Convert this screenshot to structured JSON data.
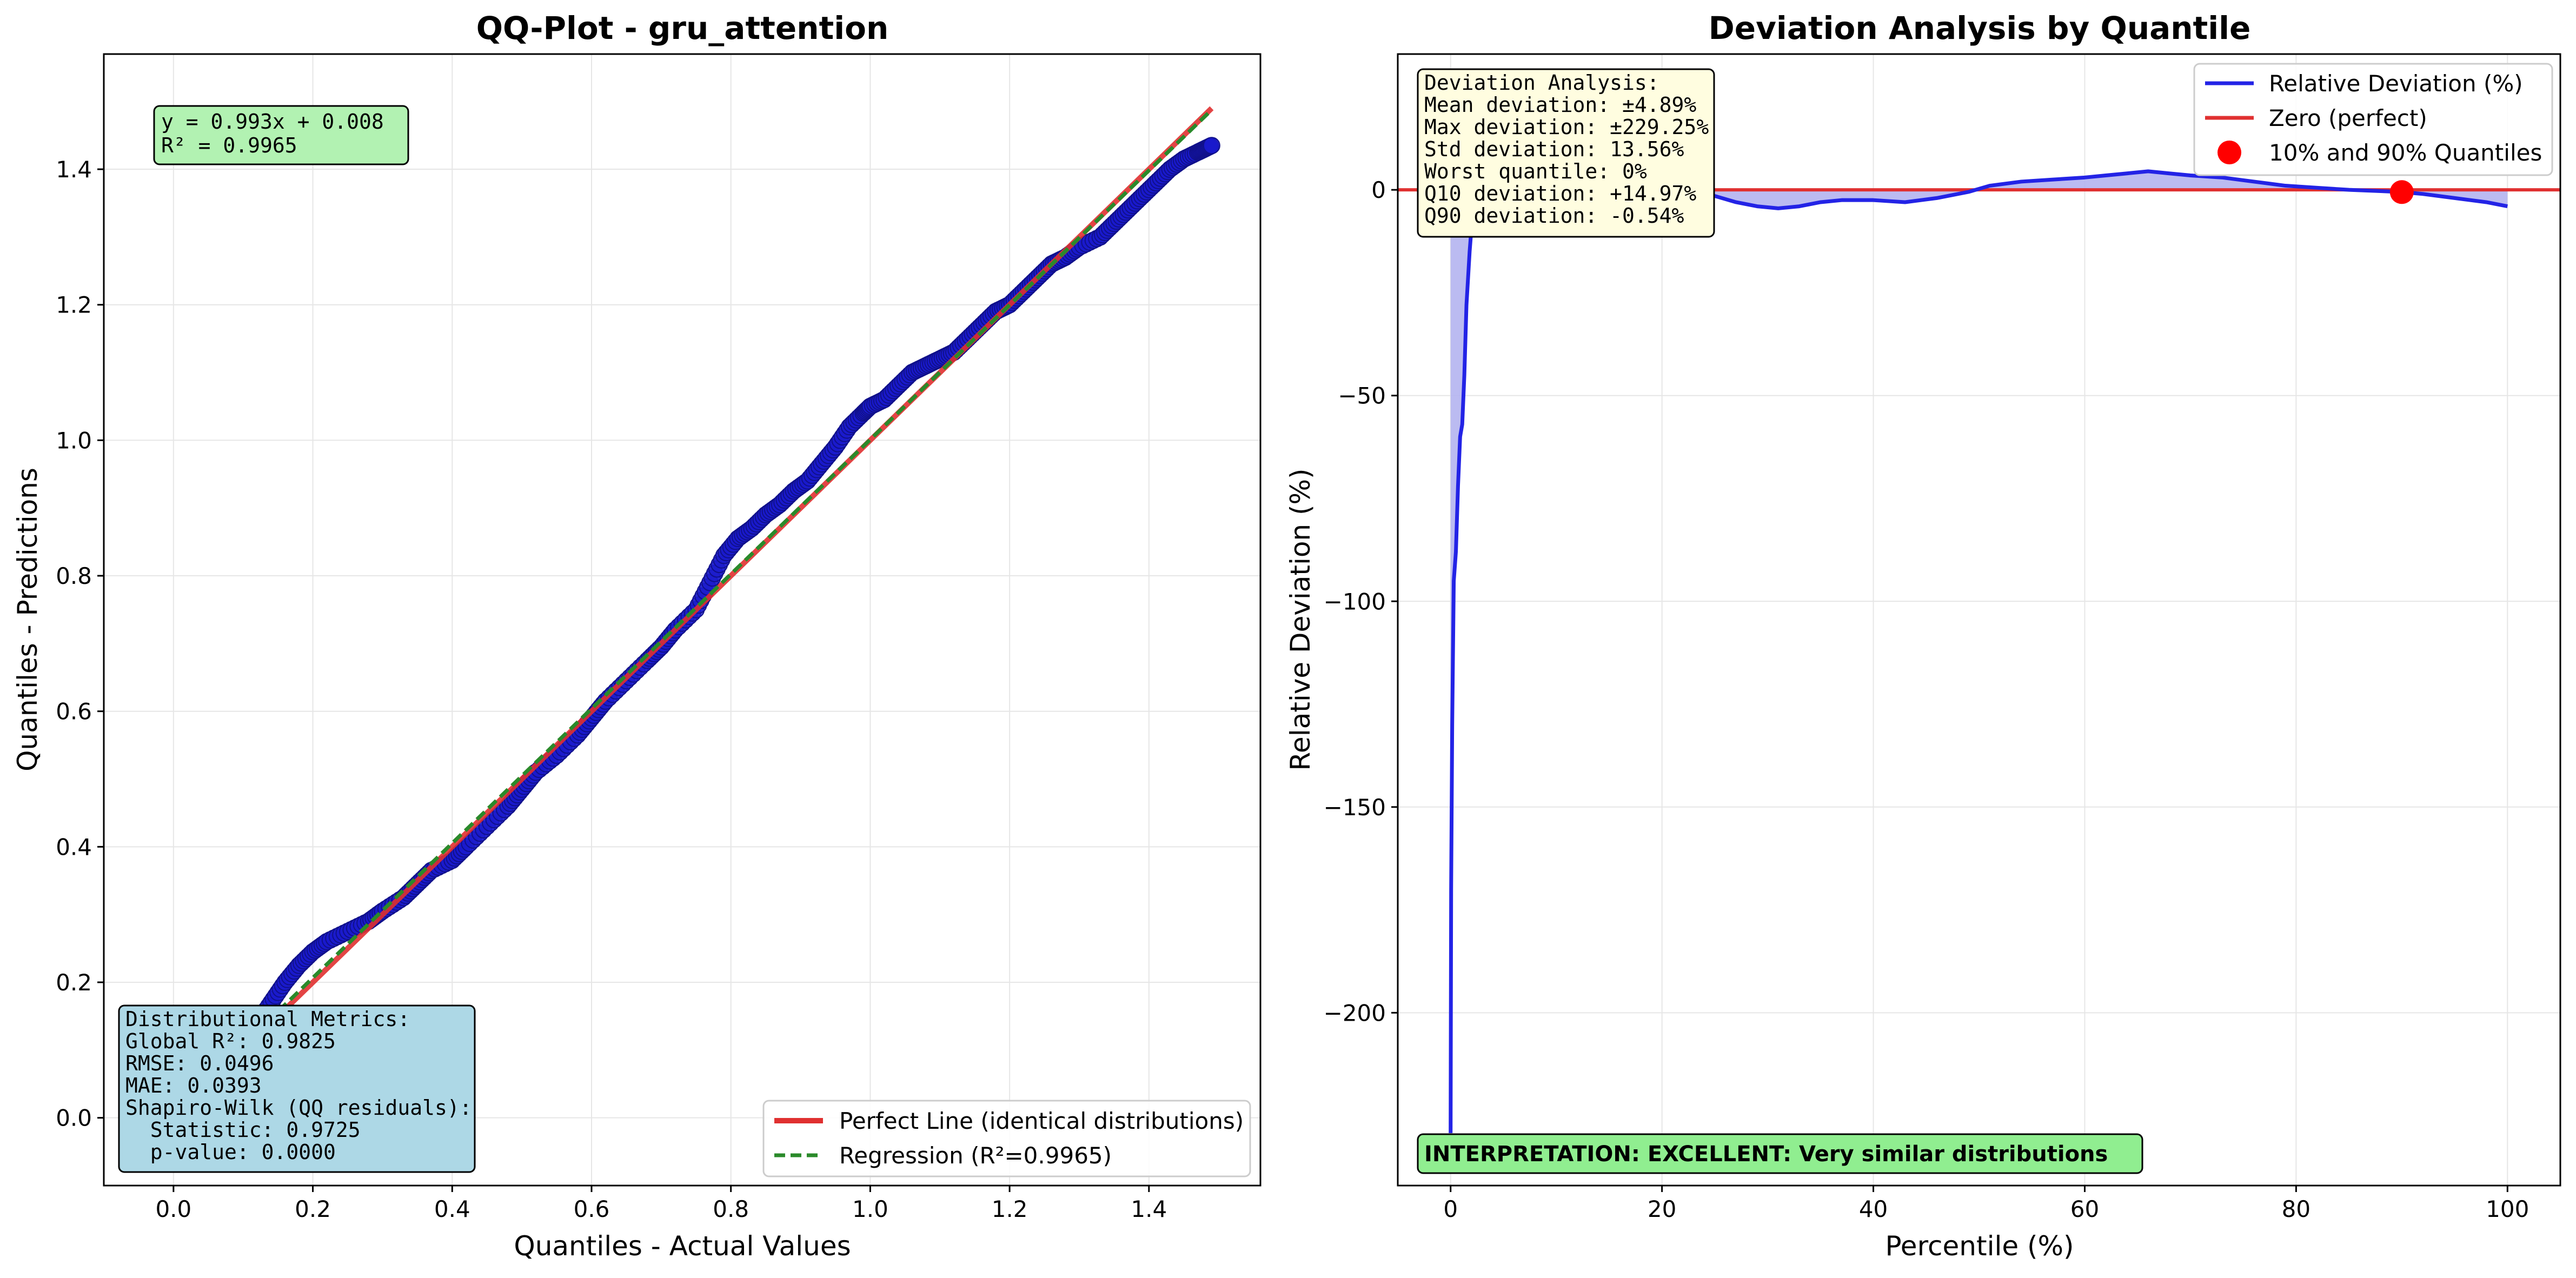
{
  "chart_data": [
    {
      "type": "scatter",
      "title": "QQ-Plot - gru_attention",
      "xlabel": "Quantiles - Actual Values",
      "ylabel": "Quantiles - Predictions",
      "xlim": [
        -0.1,
        1.56
      ],
      "ylim": [
        -0.1,
        1.57
      ],
      "xticks": [
        "0.0",
        "0.2",
        "0.4",
        "0.6",
        "0.8",
        "1.0",
        "1.2",
        "1.4"
      ],
      "yticks": [
        "0.0",
        "0.2",
        "0.4",
        "0.6",
        "0.8",
        "1.0",
        "1.2",
        "1.4"
      ],
      "grid": true,
      "legend_position": "bottom-right",
      "series": [
        {
          "kind": "points",
          "color": "#1a1acc",
          "x": [
            0.0,
            0.05,
            0.1,
            0.12,
            0.14,
            0.16,
            0.18,
            0.2,
            0.22,
            0.25,
            0.28,
            0.3,
            0.33,
            0.35,
            0.37,
            0.4,
            0.42,
            0.45,
            0.48,
            0.5,
            0.52,
            0.55,
            0.58,
            0.6,
            0.62,
            0.65,
            0.68,
            0.7,
            0.72,
            0.75,
            0.77,
            0.79,
            0.81,
            0.83,
            0.85,
            0.87,
            0.89,
            0.91,
            0.93,
            0.95,
            0.97,
            0.99,
            1.0,
            1.02,
            1.04,
            1.06,
            1.08,
            1.1,
            1.12,
            1.14,
            1.16,
            1.18,
            1.2,
            1.22,
            1.24,
            1.26,
            1.28,
            1.3,
            1.33,
            1.35,
            1.37,
            1.39,
            1.41,
            1.43,
            1.45,
            1.47,
            1.48,
            1.49
          ],
          "y": [
            -0.01,
            0.05,
            0.1,
            0.14,
            0.17,
            0.2,
            0.225,
            0.245,
            0.26,
            0.275,
            0.29,
            0.305,
            0.325,
            0.345,
            0.365,
            0.38,
            0.4,
            0.43,
            0.46,
            0.485,
            0.51,
            0.535,
            0.565,
            0.59,
            0.615,
            0.645,
            0.675,
            0.695,
            0.72,
            0.75,
            0.79,
            0.83,
            0.855,
            0.87,
            0.89,
            0.905,
            0.925,
            0.94,
            0.965,
            0.99,
            1.02,
            1.04,
            1.05,
            1.06,
            1.08,
            1.1,
            1.11,
            1.12,
            1.13,
            1.15,
            1.17,
            1.19,
            1.2,
            1.22,
            1.24,
            1.26,
            1.27,
            1.285,
            1.3,
            1.32,
            1.34,
            1.36,
            1.38,
            1.4,
            1.415,
            1.425,
            1.43,
            1.435
          ]
        },
        {
          "kind": "line",
          "name": "Perfect Line (identical distributions)",
          "color": "#e03030",
          "style": "solid",
          "x": [
            0.0,
            1.49
          ],
          "y": [
            0.0,
            1.49
          ]
        },
        {
          "kind": "line",
          "name": "Regression (R²=0.9965)",
          "color": "#2a8a2a",
          "style": "dashed",
          "x": [
            0.0,
            1.49
          ],
          "y": [
            0.008,
            1.4876
          ]
        }
      ],
      "annotations": {
        "equation": [
          "y = 0.993x + 0.008",
          "R² = 0.9965"
        ],
        "metrics": [
          "Distributional Metrics:",
          "Global R²: 0.9825",
          "RMSE: 0.0496",
          "MAE: 0.0393",
          "Shapiro-Wilk (QQ residuals):",
          "  Statistic: 0.9725",
          "  p-value: 0.0000"
        ]
      }
    },
    {
      "type": "line",
      "title": "Deviation Analysis by Quantile",
      "xlabel": "Percentile (%)",
      "ylabel": "Relative Deviation (%)",
      "xlim": [
        -5,
        105
      ],
      "ylim": [
        -242,
        33
      ],
      "xticks": [
        "0",
        "20",
        "40",
        "60",
        "80",
        "100"
      ],
      "yticks": [
        "−200",
        "−150",
        "−100",
        "−50",
        "0"
      ],
      "grid": true,
      "legend_position": "top-right",
      "series": [
        {
          "kind": "line",
          "name": "Relative Deviation (%)",
          "color": "#2323e6",
          "fill": "#b4b4f0",
          "x": [
            0.0,
            0.05,
            0.15,
            0.3,
            0.5,
            0.7,
            0.9,
            1.1,
            1.3,
            1.5,
            1.8,
            2.1,
            2.5,
            3.0,
            3.6,
            4.2,
            5.0,
            6.0,
            7.0,
            8.0,
            9.0,
            10.0,
            11.5,
            13.0,
            15.0,
            17.0,
            19.0,
            21.0,
            23.0,
            25.0,
            27.0,
            29.0,
            31.0,
            33.0,
            35.0,
            37.0,
            40.0,
            43.0,
            46.0,
            49.0,
            51.0,
            54.0,
            57.0,
            60.0,
            62.0,
            64.0,
            66.0,
            68.0,
            70.0,
            73.0,
            76.0,
            79.0,
            82.0,
            85.0,
            88.0,
            90.0,
            92.0,
            95.0,
            98.0,
            100.0
          ],
          "y": [
            -229.25,
            -170.0,
            -130.0,
            -95.0,
            -88.0,
            -72.0,
            -60.0,
            -57.0,
            -45.0,
            -28.0,
            -15.0,
            -5.0,
            3.0,
            8.0,
            12.0,
            16.0,
            19.0,
            22.0,
            21.0,
            18.0,
            16.0,
            14.97,
            12.0,
            10.0,
            8.0,
            6.0,
            4.0,
            2.0,
            0.0,
            -1.5,
            -3.0,
            -4.0,
            -4.5,
            -4.0,
            -3.0,
            -2.5,
            -2.5,
            -3.0,
            -2.0,
            -0.5,
            1.0,
            2.0,
            2.5,
            3.0,
            3.5,
            4.0,
            4.5,
            4.0,
            3.5,
            3.0,
            2.0,
            1.0,
            0.5,
            0.0,
            -0.3,
            -0.54,
            -1.0,
            -2.0,
            -3.0,
            -4.0
          ]
        },
        {
          "kind": "line",
          "name": "Zero (perfect)",
          "color": "#e03030",
          "x": [
            -5,
            105
          ],
          "y": [
            0,
            0
          ]
        },
        {
          "kind": "points",
          "name": "10% and 90% Quantiles",
          "color": "#ff0000",
          "x": [
            10,
            90
          ],
          "y": [
            14.97,
            -0.54
          ]
        }
      ],
      "annotations": {
        "deviation": [
          "Deviation Analysis:",
          "Mean deviation: ±4.89%",
          "Max deviation: ±229.25%",
          "Std deviation: 13.56%",
          "Worst quantile: 0%",
          "Q10 deviation: +14.97%",
          "Q90 deviation: -0.54%"
        ],
        "interpretation": "INTERPRETATION: EXCELLENT: Very similar distributions"
      }
    }
  ]
}
